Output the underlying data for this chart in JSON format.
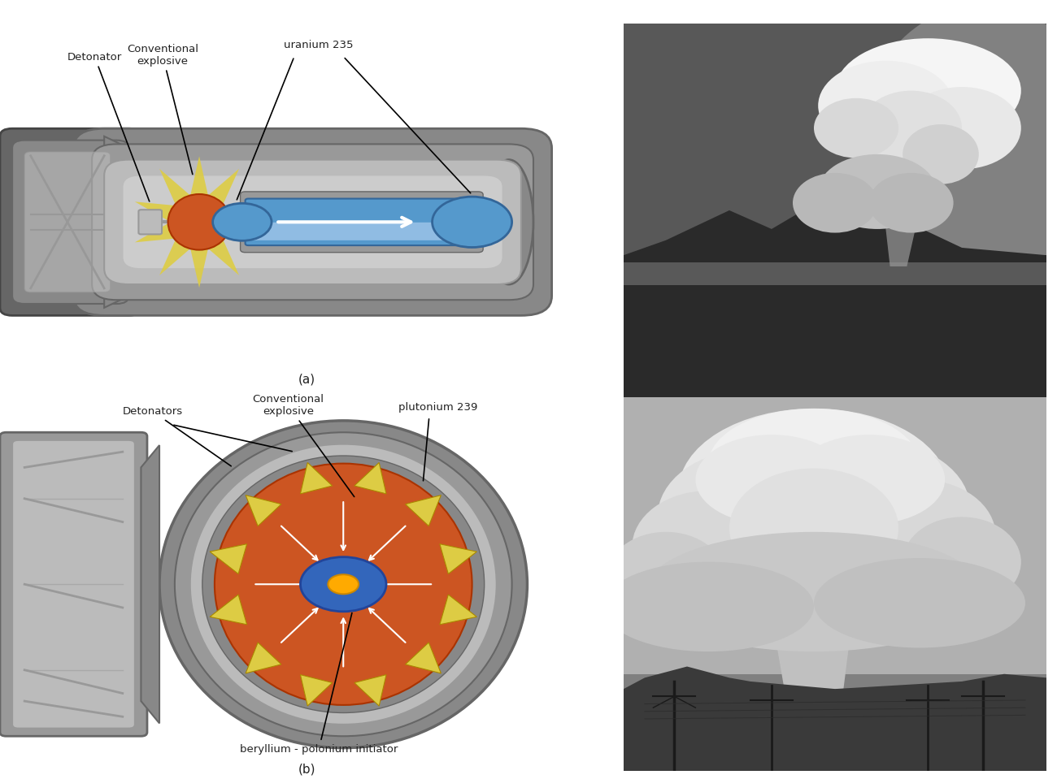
{
  "background_color": "#ffffff",
  "fig_width": 13.0,
  "fig_height": 9.59,
  "label_a": "(a)",
  "label_b": "(b)",
  "top_labels": {
    "detonator": "Detonator",
    "conventional_explosive": "Conventional\nexplosive",
    "uranium_235": "uranium 235"
  },
  "bottom_labels": {
    "detonators": "Detonators",
    "conventional_explosive": "Conventional\nexplosive",
    "plutonium_239": "plutonium 239",
    "initiator": "beryllium - polonium initiator"
  },
  "colors": {
    "bomb_outer": "#888888",
    "bomb_dark": "#666666",
    "bomb_medium": "#999999",
    "bomb_light": "#aaaaaa",
    "bomb_lighter": "#bbbbbb",
    "bomb_channel": "#cccccc",
    "inner_ring": "#d0d0d0",
    "explosive_orange": "#cc5522",
    "explosive_yellow": "#ddcc44",
    "uranium_blue": "#5599cc",
    "uranium_blue_dark": "#336699",
    "uranium_tube_inner": "#aaccee",
    "fin_color": "#777777",
    "arrow_color": "#ffffff",
    "text_color": "#222222",
    "initiator_blue": "#3366bb",
    "initiator_gold": "#ffaa00"
  }
}
